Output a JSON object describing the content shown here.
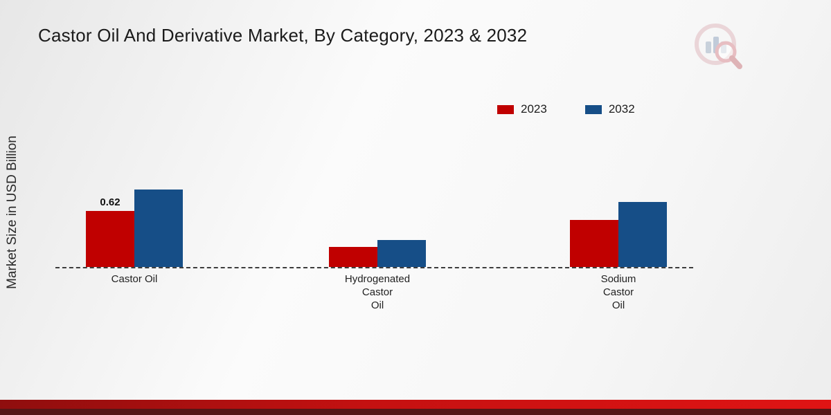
{
  "title": "Castor Oil And Derivative Market, By Category, 2023 & 2032",
  "y_axis_label": "Market Size in USD Billion",
  "legend": {
    "items": [
      {
        "label": "2023",
        "color": "#c00000"
      },
      {
        "label": "2032",
        "color": "#164e87"
      }
    ]
  },
  "chart_data": {
    "type": "bar",
    "title": "Castor Oil And Derivative Market, By Category, 2023 & 2032",
    "ylabel": "Market Size in USD Billion",
    "categories": [
      "Castor Oil",
      "Hydrogenated Castor Oil",
      "Sodium Castor Oil"
    ],
    "category_label_lines": [
      [
        "Castor Oil"
      ],
      [
        "Hydrogenated",
        "Castor",
        "Oil"
      ],
      [
        "Sodium",
        "Castor",
        "Oil"
      ]
    ],
    "series": [
      {
        "name": "2023",
        "color": "#c00000",
        "values": [
          0.62,
          0.22,
          0.52
        ],
        "data_labels": [
          "0.62",
          "",
          ""
        ]
      },
      {
        "name": "2032",
        "color": "#164e87",
        "values": [
          0.86,
          0.3,
          0.72
        ],
        "data_labels": [
          "",
          "",
          ""
        ]
      }
    ],
    "ylim": [
      0,
      1.2
    ],
    "grid": false,
    "baseline": "dashed",
    "legend_position": "top-right"
  }
}
